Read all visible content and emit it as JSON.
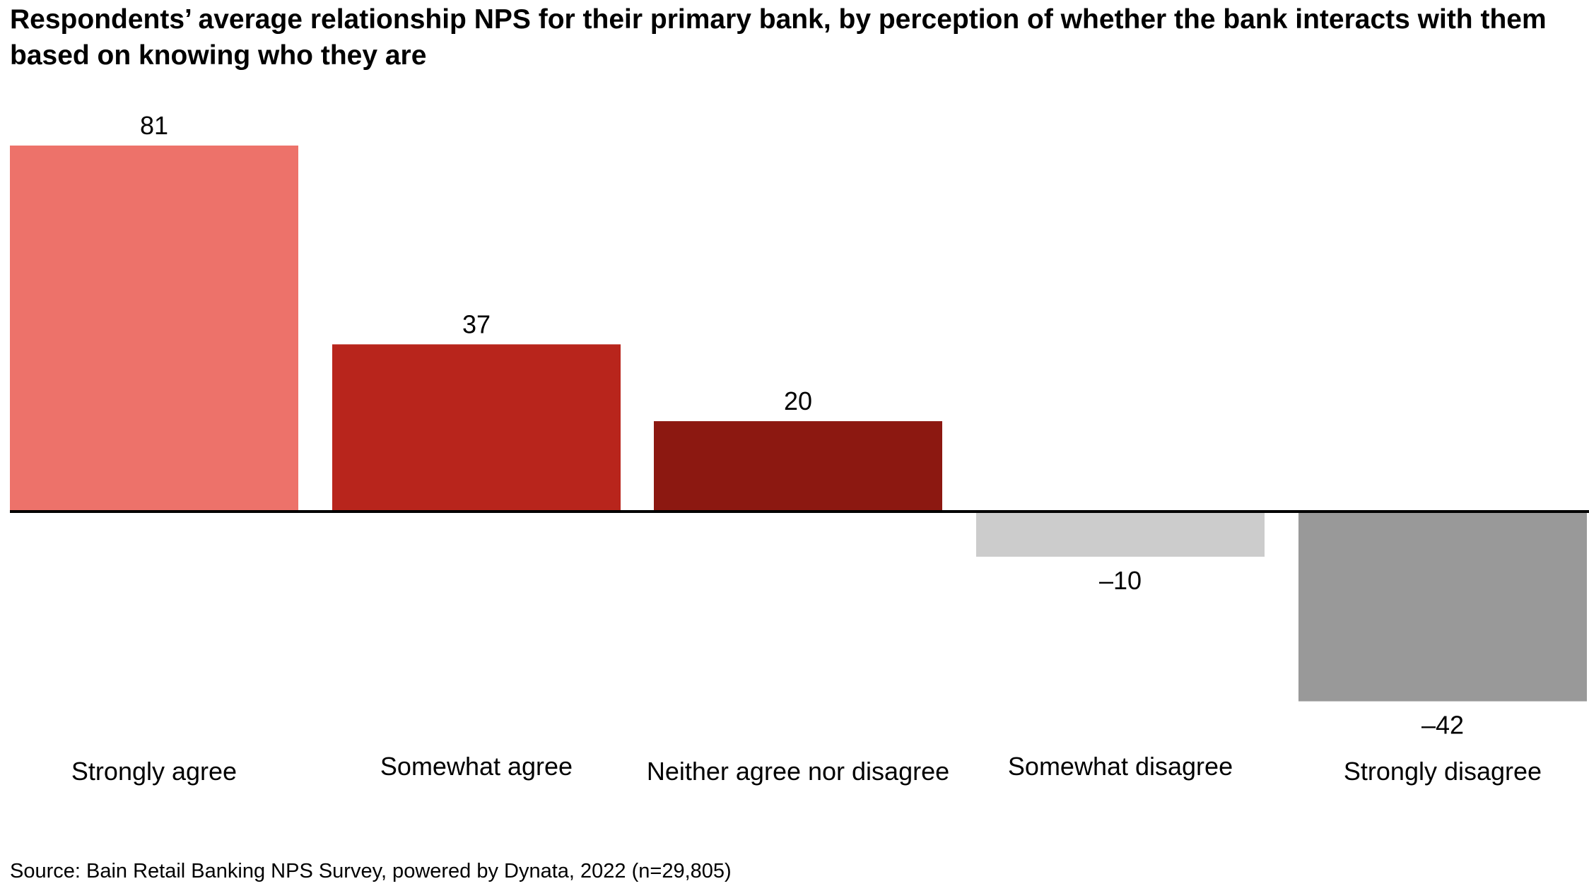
{
  "title": "Respondents’ average relationship NPS for their primary bank, by perception of whether the bank interacts with them based on knowing who they are",
  "source": "Source: Bain Retail Banking NPS Survey, powered by Dynata, 2022 (n=29,805)",
  "chart_data": {
    "type": "bar",
    "categories": [
      "Strongly agree",
      "Somewhat agree",
      "Neither agree nor disagree",
      "Somewhat disagree",
      "Strongly disagree"
    ],
    "values": [
      81,
      37,
      20,
      -10,
      -42
    ],
    "value_labels": [
      "81",
      "37",
      "20",
      "–10",
      "–42"
    ],
    "colors": [
      "#ED726A",
      "#B8251C",
      "#8C1811",
      "#CCCCCC",
      "#999999"
    ],
    "xlabel": "",
    "ylabel": "",
    "ylim": [
      -42,
      81
    ],
    "grid": false,
    "legend": "none"
  }
}
